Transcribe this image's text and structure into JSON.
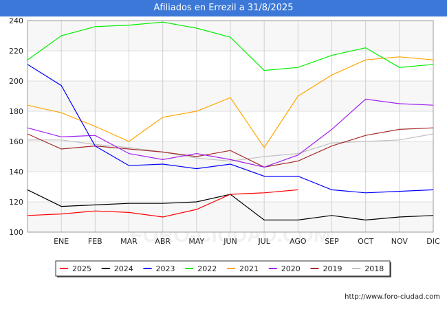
{
  "title": "Afiliados en Errezil a 31/8/2025",
  "source": "http://www.foro-ciudad.com",
  "watermark": "FORO-CIUDAD.COM",
  "chart_data": {
    "type": "line",
    "title": "Afiliados en Errezil a 31/8/2025",
    "xlabel": "",
    "ylabel": "",
    "categories": [
      "",
      "ENE",
      "FEB",
      "MAR",
      "ABR",
      "MAY",
      "JUN",
      "JUL",
      "AGO",
      "SEP",
      "OCT",
      "NOV",
      "DIC"
    ],
    "ylim": [
      100,
      240
    ],
    "yticks": [
      100,
      120,
      140,
      160,
      180,
      200,
      220,
      240
    ],
    "grid": true,
    "legend_position": "bottom",
    "series": [
      {
        "name": "2025",
        "color": "#ff0000",
        "values": [
          111,
          112,
          114,
          113,
          110,
          115,
          125,
          126,
          128,
          null,
          null,
          null,
          null
        ]
      },
      {
        "name": "2024",
        "color": "#000000",
        "values": [
          128,
          117,
          118,
          119,
          119,
          120,
          125,
          108,
          108,
          111,
          108,
          110,
          111
        ]
      },
      {
        "name": "2023",
        "color": "#0000ff",
        "values": [
          211,
          197,
          157,
          144,
          145,
          142,
          145,
          137,
          137,
          128,
          126,
          127,
          128
        ]
      },
      {
        "name": "2022",
        "color": "#00ee00",
        "values": [
          214,
          230,
          236,
          237,
          239,
          235,
          229,
          207,
          209,
          217,
          222,
          209,
          211
        ]
      },
      {
        "name": "2021",
        "color": "#ffa500",
        "values": [
          184,
          179,
          170,
          160,
          176,
          180,
          189,
          156,
          190,
          204,
          214,
          216,
          214
        ]
      },
      {
        "name": "2020",
        "color": "#a020f0",
        "values": [
          169,
          163,
          164,
          152,
          148,
          152,
          148,
          143,
          151,
          168,
          188,
          185,
          184
        ]
      },
      {
        "name": "2019",
        "color": "#a52a2a",
        "values": [
          165,
          155,
          157,
          155,
          153,
          150,
          154,
          143,
          147,
          157,
          164,
          168,
          169
        ]
      },
      {
        "name": "2018",
        "color": "#c0c0c0",
        "values": [
          161,
          161,
          158,
          156,
          153,
          149,
          147,
          150,
          152,
          159,
          160,
          161,
          165
        ]
      }
    ]
  }
}
